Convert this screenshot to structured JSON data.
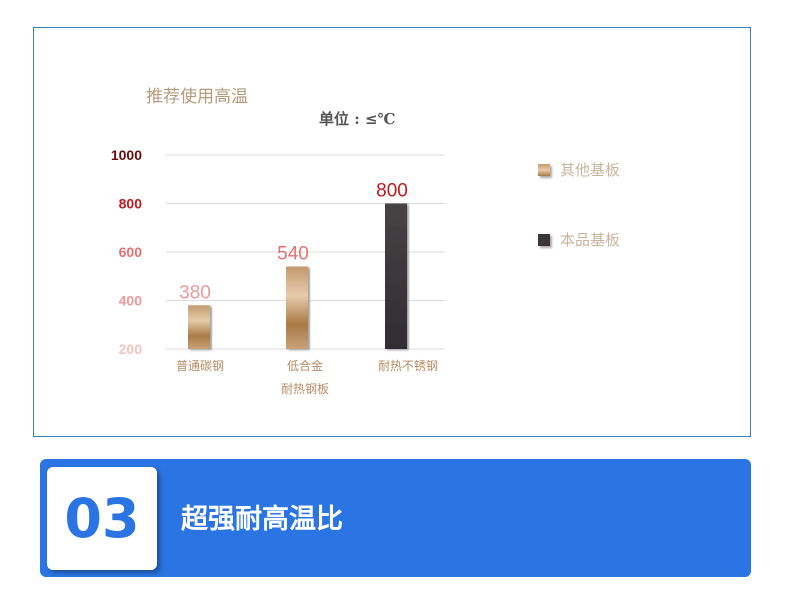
{
  "chart_data": {
    "type": "bar",
    "title": "推荐使用高温",
    "unit": "单位 : ≤℃",
    "categories": [
      "普通碳钢",
      "低合金耐热钢板",
      "耐热不锈钢"
    ],
    "category_lines": [
      [
        "普通碳钢"
      ],
      [
        "低合金",
        "耐热钢板"
      ],
      [
        "耐热不锈钢"
      ]
    ],
    "values": [
      380,
      540,
      800
    ],
    "value_labels": [
      "380",
      "540",
      "800"
    ],
    "series_legend": [
      "其他基板",
      "本品基板"
    ],
    "bar_series": [
      0,
      0,
      1
    ],
    "yticks": [
      "200",
      "400",
      "600",
      "800",
      "1000"
    ],
    "ylim": [
      200,
      1000
    ],
    "grid": true,
    "legend_position": "right",
    "colors": {
      "其他基板": "#b48a5c",
      "本品基板": "#3a3638"
    },
    "tick_colors": [
      "#f4c4c4",
      "#f19a9a",
      "#e8706f",
      "#c0191e",
      "#6b0c0c"
    ],
    "label_colors": [
      "#f09a9a",
      "#e8706f",
      "#c0191e"
    ]
  },
  "banner": {
    "number": "03",
    "title": "超强耐高温比"
  }
}
